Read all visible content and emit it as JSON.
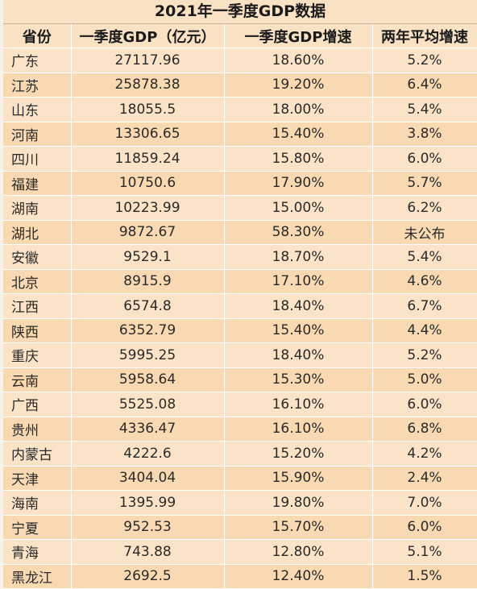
{
  "title": "2021年一季度GDP数据",
  "headers": [
    "省份",
    "一季度GDP（亿元）",
    "一季度GDP增速",
    "两年平均增速"
  ],
  "rows": [
    [
      "广东",
      "27117.96",
      "18.60%",
      "5.2%"
    ],
    [
      "江苏",
      "25878.38",
      "19.20%",
      "6.4%"
    ],
    [
      "山东",
      "18055.5",
      "18.00%",
      "5.4%"
    ],
    [
      "河南",
      "13306.65",
      "15.40%",
      "3.8%"
    ],
    [
      "四川",
      "11859.24",
      "15.80%",
      "6.0%"
    ],
    [
      "福建",
      "10750.6",
      "17.90%",
      "5.7%"
    ],
    [
      "湖南",
      "10223.99",
      "15.00%",
      "6.2%"
    ],
    [
      "湖北",
      "9872.67",
      "58.30%",
      "未公布"
    ],
    [
      "安徽",
      "9529.1",
      "18.70%",
      "5.4%"
    ],
    [
      "北京",
      "8915.9",
      "17.10%",
      "4.6%"
    ],
    [
      "江西",
      "6574.8",
      "18.40%",
      "6.7%"
    ],
    [
      "陕西",
      "6352.79",
      "15.40%",
      "4.4%"
    ],
    [
      "重庆",
      "5995.25",
      "18.40%",
      "5.2%"
    ],
    [
      "云南",
      "5958.64",
      "15.30%",
      "5.0%"
    ],
    [
      "广西",
      "5525.08",
      "16.10%",
      "6.0%"
    ],
    [
      "贵州",
      "4336.47",
      "16.10%",
      "6.8%"
    ],
    [
      "内蒙古",
      "4222.6",
      "15.20%",
      "4.2%"
    ],
    [
      "天津",
      "3404.04",
      "15.90%",
      "2.4%"
    ],
    [
      "海南",
      "1395.99",
      "19.80%",
      "7.0%"
    ],
    [
      "宁夏",
      "952.53",
      "15.70%",
      "6.0%"
    ],
    [
      "青海",
      "743.88",
      "12.80%",
      "5.1%"
    ],
    [
      "黑龙江",
      "2692.5",
      "12.40%",
      "1.5%"
    ]
  ]
}
